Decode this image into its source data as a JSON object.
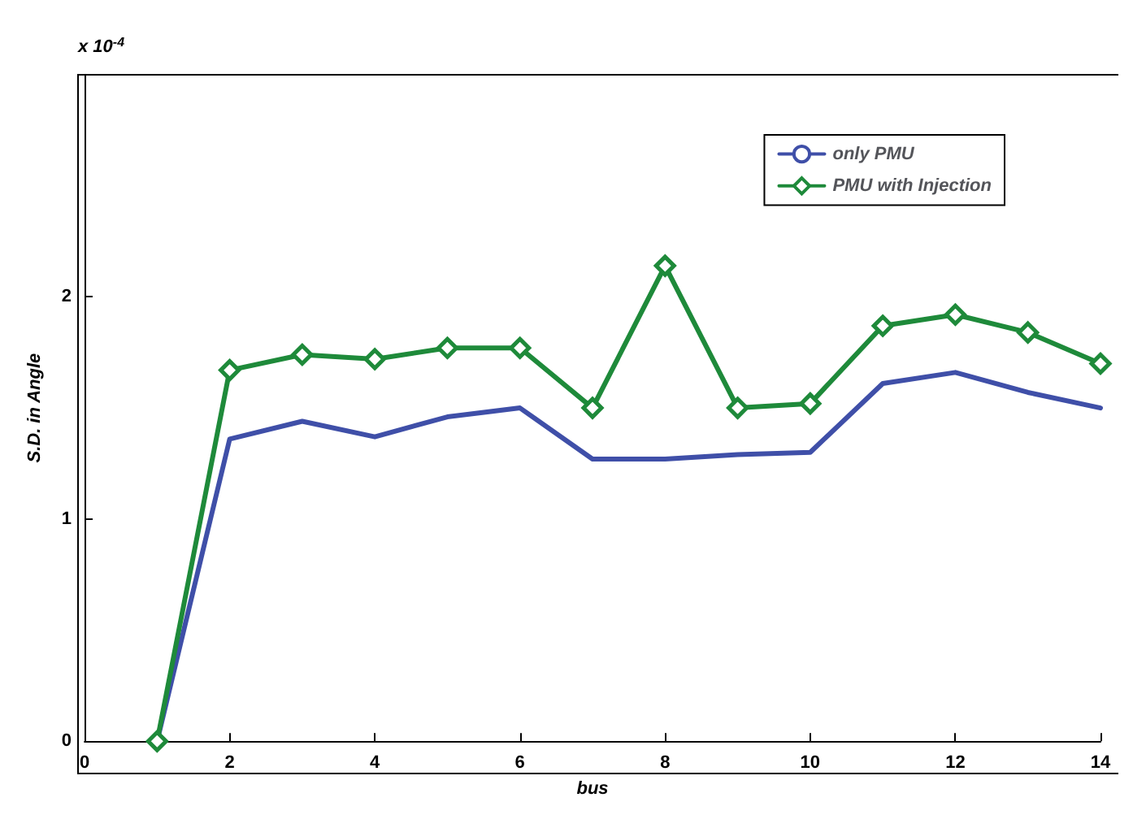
{
  "chart_data": {
    "type": "line",
    "xlabel": "bus",
    "ylabel": "S.D. in Angle",
    "annotations": [
      "x 10$^{-4}$"
    ],
    "x": [
      1,
      2,
      3,
      4,
      5,
      6,
      7,
      8,
      9,
      10,
      11,
      12,
      13,
      14
    ],
    "series": [
      {
        "name": "only PMU",
        "color": "#3f4fa8",
        "marker": "none",
        "values": [
          0,
          1.36,
          1.44,
          1.37,
          1.46,
          1.5,
          1.27,
          1.27,
          1.29,
          1.3,
          1.61,
          1.66,
          1.57,
          1.5
        ]
      },
      {
        "name": "PMU with Injection",
        "color": "#1e8a3a",
        "marker": "diamond",
        "values": [
          0,
          1.67,
          1.74,
          1.72,
          1.77,
          1.77,
          1.5,
          2.14,
          1.5,
          1.52,
          1.87,
          1.92,
          1.84,
          1.7
        ]
      }
    ],
    "xlim": [
      0,
      14
    ],
    "xticks": [
      0,
      2,
      4,
      6,
      8,
      10,
      12,
      14
    ],
    "ylim": [
      0,
      3
    ],
    "yticks": [
      0,
      1,
      2
    ],
    "grid": false,
    "legend": "top right",
    "line_style": "solid"
  }
}
